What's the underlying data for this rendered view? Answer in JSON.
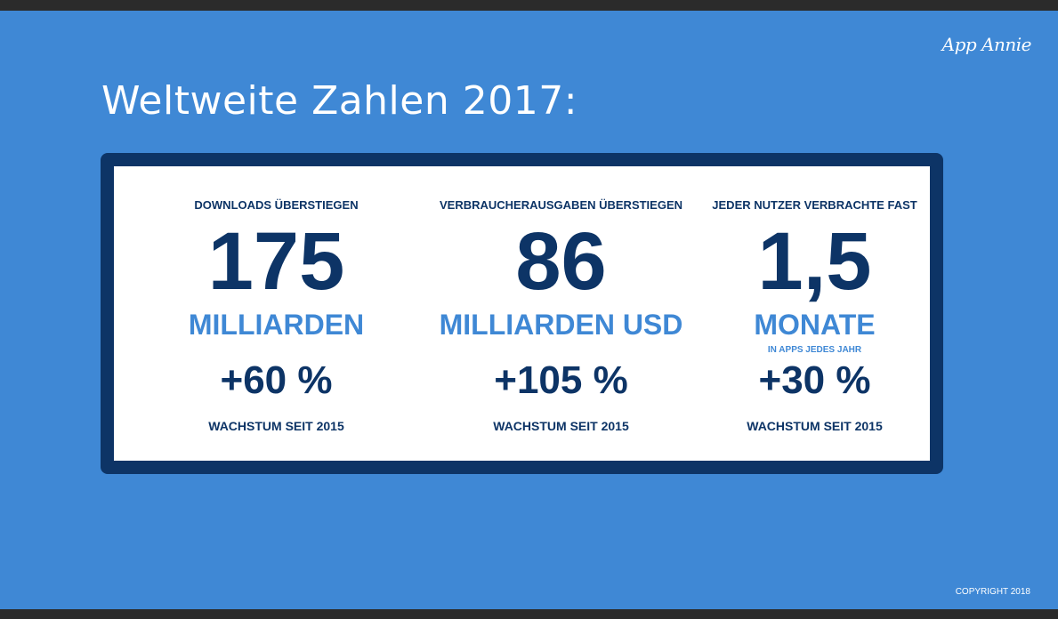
{
  "brand": "App Annie",
  "title": "Weltweite Zahlen 2017:",
  "stats": [
    {
      "label": "DOWNLOADS ÜBERSTIEGEN",
      "value": "175",
      "unit": "MILLIARDEN",
      "sub": "",
      "growth": "+60 %",
      "growth_label": "WACHSTUM SEIT 2015"
    },
    {
      "label": "VERBRAUCHERAUSGABEN ÜBERSTIEGEN",
      "value": "86",
      "unit": "MILLIARDEN USD",
      "sub": "",
      "growth": "+105 %",
      "growth_label": "WACHSTUM SEIT 2015"
    },
    {
      "label": "JEDER NUTZER VERBRACHTE FAST",
      "value": "1,5",
      "unit": "MONATE",
      "sub": "IN APPS JEDES JAHR",
      "growth": "+30 %",
      "growth_label": "WACHSTUM SEIT 2015"
    }
  ],
  "copyright": "COPYRIGHT 2018",
  "colors": {
    "background": "#3f88d5",
    "panel_border": "#0d3466",
    "accent_text": "#3f88d5",
    "dark_text": "#0d3466"
  }
}
